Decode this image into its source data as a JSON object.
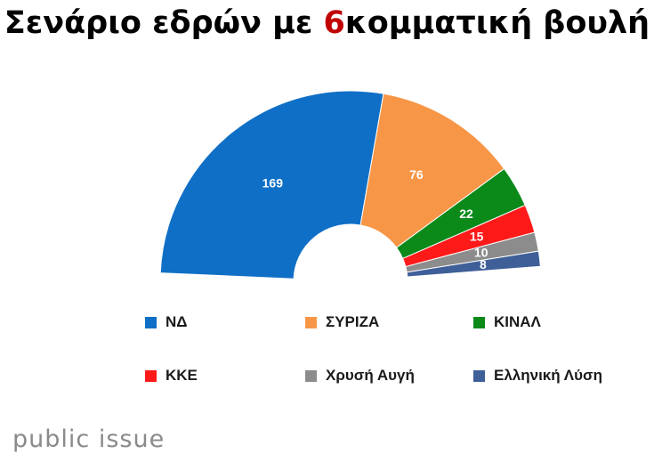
{
  "title": {
    "before": "Σενάριο εδρών με ",
    "highlight": "6",
    "after": "κομματική βουλή"
  },
  "brand": "public issue",
  "colors": {
    "highlight": "#c00000",
    "label": "#ffffff"
  },
  "chart_data": {
    "type": "pie",
    "subtype": "parliament-half-donut",
    "title": "Σενάριο εδρών με 6κομματική βουλή",
    "legend_position": "bottom",
    "series": [
      {
        "name": "ΝΔ",
        "value": 169,
        "color": "#0f6fc6"
      },
      {
        "name": "ΣΥΡΙΖΑ",
        "value": 76,
        "color": "#f79646"
      },
      {
        "name": "ΚΙΝΑΛ",
        "value": 22,
        "color": "#0b8a1a"
      },
      {
        "name": "ΚΚΕ",
        "value": 15,
        "color": "#ff1a1a"
      },
      {
        "name": "Χρυσή Αυγή",
        "value": 10,
        "color": "#8c8c8c"
      },
      {
        "name": "Ελληνική Λύση",
        "value": 8,
        "color": "#3f5f98"
      }
    ]
  }
}
